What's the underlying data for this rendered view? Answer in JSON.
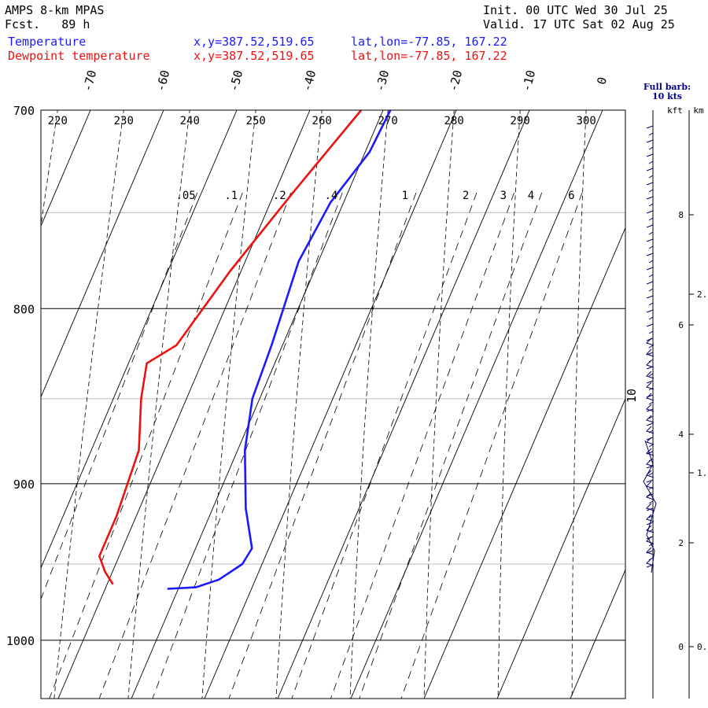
{
  "header": {
    "model": "AMPS 8-km MPAS",
    "forecast": "Fcst.   89 h",
    "init": "Init. 00 UTC Wed 30 Jul 25",
    "valid": "Valid. 17 UTC Sat 02 Aug 25",
    "series_labels": [
      {
        "name": "Temperature",
        "xy": "x,y=387.52,519.65",
        "latlon": "lat,lon=-77.85, 167.22",
        "color": "#1a1aff"
      },
      {
        "name": "Dewpoint temperature",
        "xy": "x,y=387.52,519.65",
        "latlon": "lat,lon=-77.85, 167.22",
        "color": "#ee1111"
      }
    ]
  },
  "wind_panel": {
    "title_1": "Full barb:",
    "title_2": "10 kts",
    "kft_label": "kft",
    "km_label": "km",
    "kft_ticks": [
      "8",
      "6",
      "4",
      "2",
      "0"
    ],
    "km_ticks": [
      "2.",
      "1.",
      "0."
    ]
  },
  "chart_data": {
    "type": "line",
    "skew_t": true,
    "pressure_range": [
      700,
      1040
    ],
    "y_scale": "log",
    "pressure_lines": [
      700,
      800,
      900,
      1000
    ],
    "pressure_labels": [
      "700",
      "800",
      "900",
      "1000"
    ],
    "minor_pressure_lines": [
      750,
      850,
      950
    ],
    "temperature_labels": [
      "-70",
      "-60",
      "-50",
      "-40",
      "-30",
      "-20",
      "-10",
      "0"
    ],
    "dry_adiabat_labels": [
      "220",
      "230",
      "240",
      "250",
      "260",
      "270",
      "280",
      "290",
      "300"
    ],
    "mixing_ratio_labels": [
      ".05",
      ".1",
      ".2",
      ".4",
      "1",
      "2",
      "3",
      "4",
      "6"
    ],
    "annotation": "10",
    "series": [
      {
        "name": "Temperature",
        "color": "#1a1aff",
        "points": [
          [
            700,
            -29
          ],
          [
            720,
            -29.4
          ],
          [
            745,
            -31.8
          ],
          [
            775,
            -32.7
          ],
          [
            820,
            -31.5
          ],
          [
            850,
            -31.0
          ],
          [
            880,
            -29.0
          ],
          [
            915,
            -25.5
          ],
          [
            940,
            -22.3
          ],
          [
            950,
            -22.7
          ],
          [
            960,
            -25.0
          ],
          [
            965,
            -27.7
          ],
          [
            966,
            -31.5
          ]
        ]
      },
      {
        "name": "Dewpoint temperature",
        "color": "#ee1111",
        "points": [
          [
            700,
            -33
          ],
          [
            740,
            -37.5
          ],
          [
            780,
            -41.5
          ],
          [
            820,
            -44.5
          ],
          [
            830,
            -47.5
          ],
          [
            850,
            -46.2
          ],
          [
            880,
            -43.5
          ],
          [
            920,
            -42.7
          ],
          [
            945,
            -42.7
          ],
          [
            955,
            -41.0
          ],
          [
            963,
            -39.2
          ]
        ]
      }
    ]
  }
}
